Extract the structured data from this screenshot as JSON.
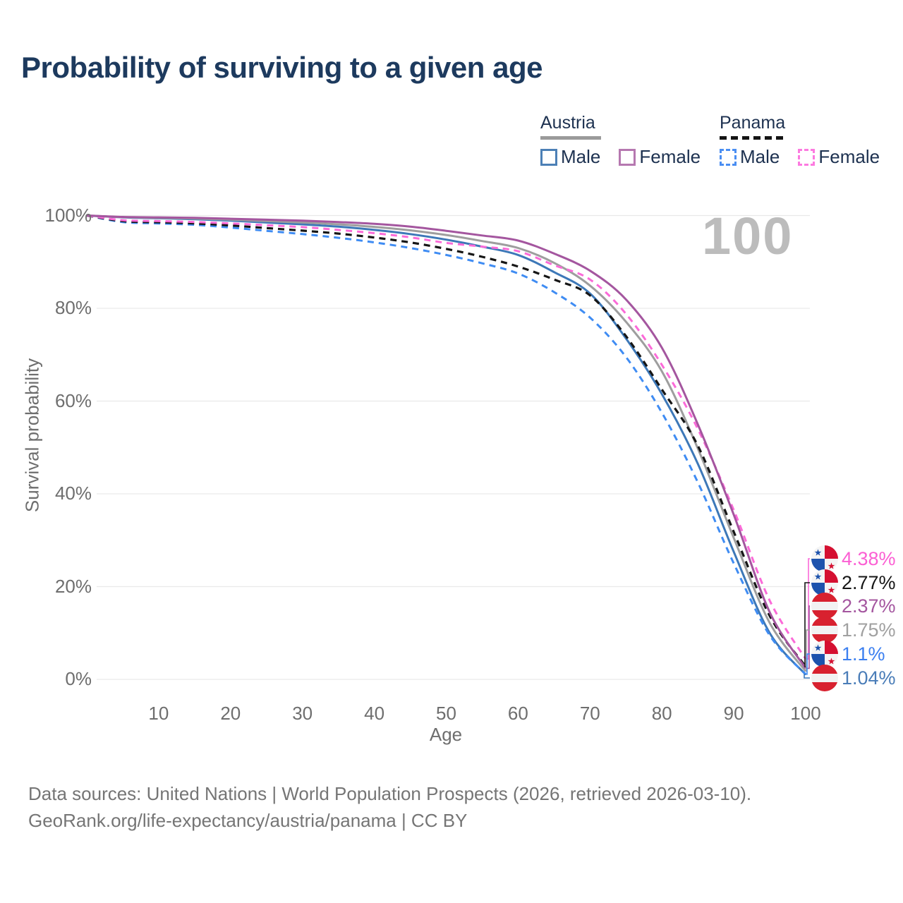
{
  "title": "Probability of surviving to a given age",
  "watermark_age": "100",
  "legend": {
    "groups": [
      {
        "country": "Austria",
        "items": [
          {
            "label": "Male"
          },
          {
            "label": "Female"
          }
        ]
      },
      {
        "country": "Panama",
        "items": [
          {
            "label": "Male"
          },
          {
            "label": "Female"
          }
        ]
      }
    ]
  },
  "chart_data": {
    "type": "line",
    "title": "Probability of surviving to a given age",
    "xlabel": "Age",
    "ylabel": "Survival probability",
    "xlim": [
      0,
      100
    ],
    "ylim": [
      0,
      100
    ],
    "grid": "horizontal",
    "x": [
      0,
      5,
      10,
      15,
      20,
      25,
      30,
      35,
      40,
      45,
      50,
      55,
      60,
      65,
      70,
      75,
      80,
      85,
      90,
      95,
      100
    ],
    "xticks": [
      {
        "value": 10,
        "label": "10"
      },
      {
        "value": 20,
        "label": "20"
      },
      {
        "value": 30,
        "label": "30"
      },
      {
        "value": 40,
        "label": "40"
      },
      {
        "value": 50,
        "label": "50"
      },
      {
        "value": 60,
        "label": "60"
      },
      {
        "value": 70,
        "label": "70"
      },
      {
        "value": 80,
        "label": "80"
      },
      {
        "value": 90,
        "label": "90"
      },
      {
        "value": 100,
        "label": "100"
      }
    ],
    "yticks": [
      {
        "value": 0,
        "label": "0%"
      },
      {
        "value": 20,
        "label": "20%"
      },
      {
        "value": 40,
        "label": "40%"
      },
      {
        "value": 60,
        "label": "60%"
      },
      {
        "value": 80,
        "label": "80%"
      },
      {
        "value": 100,
        "label": "100%"
      }
    ],
    "series": [
      {
        "key": "austria_male",
        "name": "Austria Male",
        "color": "#3d78b8",
        "dashed": false,
        "values": [
          100,
          99.6,
          99.4,
          99.2,
          98.9,
          98.5,
          98.1,
          97.6,
          96.9,
          96.0,
          94.8,
          93.3,
          91.5,
          87.8,
          83.2,
          73.5,
          61.5,
          46.5,
          27.5,
          10.0,
          1.04
        ],
        "end_label": "1.04%"
      },
      {
        "key": "panama_male",
        "name": "Panama Male",
        "color": "#3f8cf3",
        "dashed": true,
        "values": [
          100,
          98.6,
          98.3,
          98.0,
          97.4,
          96.7,
          96.0,
          95.2,
          94.2,
          93.0,
          91.5,
          89.7,
          87.5,
          83.5,
          78.0,
          69.5,
          57.5,
          42.5,
          25.0,
          9.5,
          1.1
        ],
        "end_label": "1.1%"
      },
      {
        "key": "austria_all",
        "name": "Austria",
        "color": "#9e9e9e",
        "dashed": false,
        "values": [
          100,
          99.65,
          99.5,
          99.35,
          99.1,
          98.8,
          98.5,
          98.1,
          97.55,
          96.8,
          95.8,
          94.5,
          93.0,
          89.8,
          84.9,
          77.1,
          66.4,
          49.8,
          30.5,
          12.2,
          1.75
        ],
        "end_label": "1.75%"
      },
      {
        "key": "panama_all",
        "name": "Panama",
        "color": "#161616",
        "dashed": true,
        "values": [
          100,
          98.8,
          98.55,
          98.3,
          97.85,
          97.3,
          96.75,
          96.1,
          95.25,
          94.2,
          92.8,
          91.1,
          89.0,
          86.2,
          82.8,
          74.0,
          62.5,
          50.4,
          31.8,
          13.7,
          2.77
        ],
        "end_label": "2.77%"
      },
      {
        "key": "panama_female",
        "name": "Panama Female",
        "color": "#fb6ad8",
        "dashed": true,
        "values": [
          100,
          99.0,
          98.8,
          98.6,
          98.3,
          97.9,
          97.5,
          96.9,
          96.2,
          95.3,
          94.1,
          93.3,
          92.3,
          89.3,
          86.2,
          78.8,
          67.8,
          54.0,
          36.5,
          17.0,
          4.38
        ],
        "end_label": "4.38%"
      },
      {
        "key": "austria_female",
        "name": "Austria Female",
        "color": "#a4569f",
        "dashed": false,
        "values": [
          100,
          99.7,
          99.6,
          99.5,
          99.3,
          99.1,
          98.9,
          98.6,
          98.2,
          97.6,
          96.7,
          95.7,
          94.6,
          91.8,
          88.1,
          81.9,
          71.5,
          55.0,
          35.5,
          14.5,
          2.37
        ],
        "end_label": "2.37%"
      }
    ]
  },
  "end_labels": [
    {
      "series": "panama_female",
      "flag": "panama",
      "value": "4.38%",
      "color": "#fb5fd3"
    },
    {
      "series": "panama_all",
      "flag": "panama",
      "value": "2.77%",
      "color": "#161616"
    },
    {
      "series": "austria_female",
      "flag": "austria",
      "value": "2.37%",
      "color": "#a4569f"
    },
    {
      "series": "austria_all",
      "flag": "austria",
      "value": "1.75%",
      "color": "#a0a0a0"
    },
    {
      "series": "panama_male",
      "flag": "panama",
      "value": "1.1%",
      "color": "#3b7ff0"
    },
    {
      "series": "austria_male",
      "flag": "austria",
      "value": "1.04%",
      "color": "#4a7db8"
    }
  ],
  "footer": {
    "line1": "Data sources: United Nations | World Population Prospects (2026, retrieved 2026-03-10).",
    "line2": "GeoRank.org/life-expectancy/austria/panama | CC BY"
  }
}
